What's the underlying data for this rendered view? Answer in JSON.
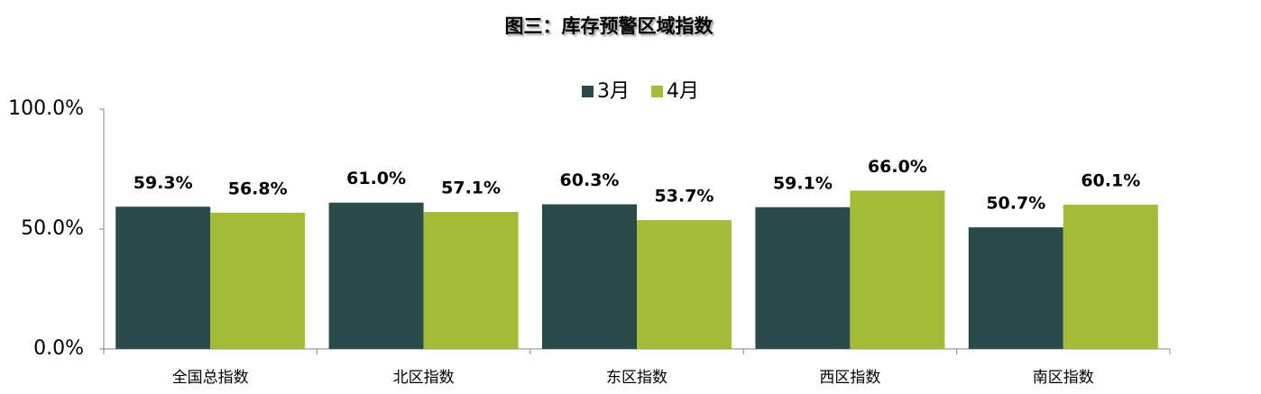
{
  "chart_data": {
    "type": "bar",
    "title": "图三：库存预警区域指数",
    "categories": [
      "全国总指数",
      "北区指数",
      "东区指数",
      "西区指数",
      "南区指数"
    ],
    "series": [
      {
        "name": "3月",
        "color": "#2b4a4a",
        "values": [
          59.3,
          61.0,
          60.3,
          59.1,
          50.7
        ],
        "value_labels": [
          "59.3%",
          "61.0%",
          "60.3%",
          "59.1%",
          "50.7%"
        ]
      },
      {
        "name": "4月",
        "color": "#a3bb36",
        "values": [
          56.8,
          57.1,
          53.7,
          66.0,
          60.1
        ],
        "value_labels": [
          "56.8%",
          "57.1%",
          "53.7%",
          "66.0%",
          "60.1%"
        ]
      }
    ],
    "ylim": [
      0,
      100
    ],
    "yticks": [
      {
        "value": 0,
        "label": "0.0%"
      },
      {
        "value": 50,
        "label": "50.0%"
      },
      {
        "value": 100,
        "label": "100.0%"
      }
    ],
    "grid": false,
    "legend": "top"
  }
}
